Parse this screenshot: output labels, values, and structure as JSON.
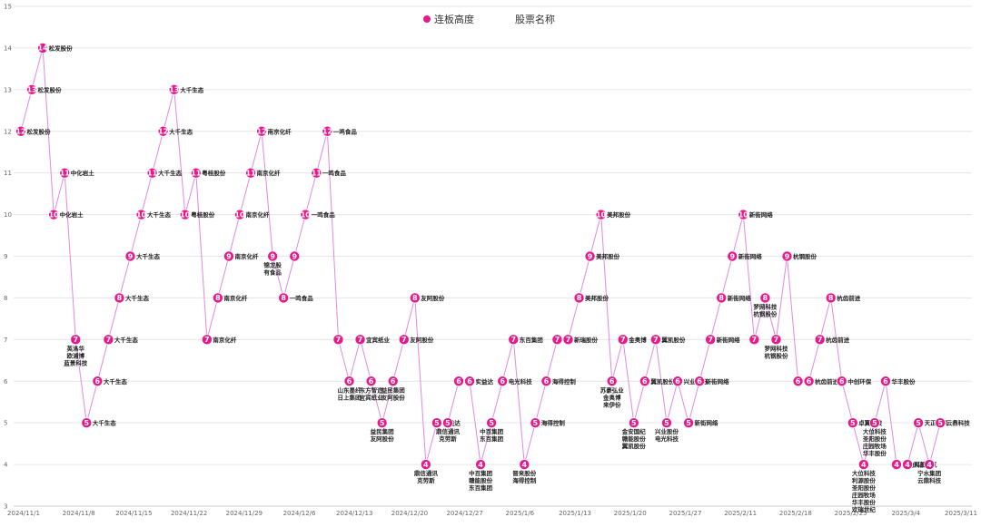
{
  "chart_data": {
    "type": "line",
    "y_ticks": [
      3,
      4,
      5,
      6,
      7,
      8,
      9,
      10,
      11,
      12,
      13,
      14,
      15
    ],
    "ylim": [
      3,
      15
    ],
    "x_ticks": [
      "2024/11/1",
      "2024/11/8",
      "2024/11/15",
      "2024/11/22",
      "2024/11/29",
      "2024/12/6",
      "2024/12/13",
      "2024/12/20",
      "2024/12/27",
      "2025/1/6",
      "2025/1/13",
      "2025/1/20",
      "2025/1/27",
      "2025/2/11",
      "2025/2/18",
      "2025/2/25",
      "2025/3/4",
      "2025/3/11"
    ],
    "legend": [
      {
        "label": "连板高度",
        "color": "#e8198b"
      },
      {
        "label": "股票名称",
        "color": "#ffffff"
      }
    ],
    "series_color": "#e8198b",
    "line_color": "#e089e0",
    "points": [
      {
        "x": 0,
        "y": 12,
        "label": "松发股份"
      },
      {
        "x": 1,
        "y": 13,
        "label": "松发股份"
      },
      {
        "x": 2,
        "y": 14,
        "label": "松发股份"
      },
      {
        "x": 3,
        "y": 10,
        "label": "中化岩土"
      },
      {
        "x": 4,
        "y": 11,
        "label": "中化岩土"
      },
      {
        "x": 5,
        "y": 7,
        "label": "英洛华\n欧浦博\n蓝景科技"
      },
      {
        "x": 6,
        "y": 5,
        "label": "大千生态"
      },
      {
        "x": 7,
        "y": 6,
        "label": "大千生态"
      },
      {
        "x": 8,
        "y": 7,
        "label": "大千生态"
      },
      {
        "x": 9,
        "y": 8,
        "label": "大千生态"
      },
      {
        "x": 10,
        "y": 9,
        "label": "大千生态"
      },
      {
        "x": 11,
        "y": 10,
        "label": "大千生态"
      },
      {
        "x": 12,
        "y": 11,
        "label": "大千生态"
      },
      {
        "x": 13,
        "y": 12,
        "label": "大千生态"
      },
      {
        "x": 14,
        "y": 13,
        "label": "大千生态"
      },
      {
        "x": 15,
        "y": 10,
        "label": "粤桂股份"
      },
      {
        "x": 16,
        "y": 11,
        "label": "粤桂股份"
      },
      {
        "x": 17,
        "y": 7,
        "label": "南京化纤"
      },
      {
        "x": 18,
        "y": 8,
        "label": "南京化纤"
      },
      {
        "x": 19,
        "y": 9,
        "label": "南京化纤"
      },
      {
        "x": 20,
        "y": 10,
        "label": "南京化纤"
      },
      {
        "x": 21,
        "y": 11,
        "label": "南京化纤"
      },
      {
        "x": 22,
        "y": 12,
        "label": "南京化纤"
      },
      {
        "x": 23,
        "y": 9,
        "label": "锦龙股\n有食品"
      },
      {
        "x": 24,
        "y": 8,
        "label": "一鸣食品"
      },
      {
        "x": 25,
        "y": 9,
        "label": ""
      },
      {
        "x": 26,
        "y": 10,
        "label": "一鸣食品"
      },
      {
        "x": 27,
        "y": 11,
        "label": "一鸣食品"
      },
      {
        "x": 28,
        "y": 12,
        "label": "一鸣食品"
      },
      {
        "x": 29,
        "y": 7,
        "label": ""
      },
      {
        "x": 30,
        "y": 6,
        "label": "山东墨纤\n日上集团"
      },
      {
        "x": 31,
        "y": 7,
        "label": "宜宾纸业"
      },
      {
        "x": 32,
        "y": 6,
        "label": "东方智造\n宜宾纸业"
      },
      {
        "x": 33,
        "y": 5,
        "label": "益民集团\n友阿股份"
      },
      {
        "x": 34,
        "y": 6,
        "label": "益民集团\n友阿股份"
      },
      {
        "x": 35,
        "y": 7,
        "label": "友阿股份"
      },
      {
        "x": 36,
        "y": 8,
        "label": "友阿股份"
      },
      {
        "x": 37,
        "y": 4,
        "label": "鼎信通讯\n克劳斯"
      },
      {
        "x": 38,
        "y": 5,
        "label": "实益达"
      },
      {
        "x": 39,
        "y": 5,
        "label": "鼎信通讯\n克劳斯"
      },
      {
        "x": 40,
        "y": 6,
        "label": ""
      },
      {
        "x": 41,
        "y": 6,
        "label": "实益达"
      },
      {
        "x": 42,
        "y": 4,
        "label": "中百集团\n赣能股份\n东百集团"
      },
      {
        "x": 43,
        "y": 5,
        "label": "中百集团\n东百集团"
      },
      {
        "x": 44,
        "y": 6,
        "label": "电光科技"
      },
      {
        "x": 45,
        "y": 7,
        "label": "东百集团"
      },
      {
        "x": 46,
        "y": 4,
        "label": "晋来股份\n海得控制"
      },
      {
        "x": 47,
        "y": 5,
        "label": "海得控制"
      },
      {
        "x": 48,
        "y": 6,
        "label": "海得控制"
      },
      {
        "x": 49,
        "y": 7,
        "label": ""
      },
      {
        "x": 50,
        "y": 7,
        "label": "新瑞股份"
      },
      {
        "x": 51,
        "y": 8,
        "label": "美邦股份"
      },
      {
        "x": 52,
        "y": 9,
        "label": "美邦股份"
      },
      {
        "x": 53,
        "y": 10,
        "label": "美邦股份"
      },
      {
        "x": 54,
        "y": 6,
        "label": "苏豪弘业\n金奥博\n来伊份"
      },
      {
        "x": 55,
        "y": 7,
        "label": "金奥博"
      },
      {
        "x": 56,
        "y": 5,
        "label": "金安国纪\n赣能股份\n翼凯股份"
      },
      {
        "x": 57,
        "y": 6,
        "label": "翼凯股份"
      },
      {
        "x": 58,
        "y": 7,
        "label": "翼凯股份"
      },
      {
        "x": 59,
        "y": 5,
        "label": "兴业股份\n电光科技"
      },
      {
        "x": 60,
        "y": 6,
        "label": "兴业股份"
      },
      {
        "x": 61,
        "y": 5,
        "label": "新街网络"
      },
      {
        "x": 62,
        "y": 6,
        "label": "新街网络"
      },
      {
        "x": 63,
        "y": 7,
        "label": "新街网络"
      },
      {
        "x": 64,
        "y": 8,
        "label": "新街网络"
      },
      {
        "x": 65,
        "y": 9,
        "label": "新街网络"
      },
      {
        "x": 66,
        "y": 10,
        "label": "新街网络"
      },
      {
        "x": 67,
        "y": 7,
        "label": ""
      },
      {
        "x": 68,
        "y": 8,
        "label": "梦网科技\n杭钢股份"
      },
      {
        "x": 69,
        "y": 7,
        "label": "梦网科技\n杭钢股份"
      },
      {
        "x": 70,
        "y": 9,
        "label": "杭钢股份"
      },
      {
        "x": 71,
        "y": 6,
        "label": ""
      },
      {
        "x": 72,
        "y": 6,
        "label": "杭齿前进"
      },
      {
        "x": 73,
        "y": 7,
        "label": "杭齿前进"
      },
      {
        "x": 74,
        "y": 8,
        "label": "杭齿前进"
      },
      {
        "x": 75,
        "y": 6,
        "label": "中创环保"
      },
      {
        "x": 76,
        "y": 5,
        "label": "卓翼科技"
      },
      {
        "x": 77,
        "y": 4,
        "label": "大位科技\n利源股份\n圣阳股份\n庄园牧场\n华丰股份\n欢瑞世纪"
      },
      {
        "x": 78,
        "y": 5,
        "label": "大位科技\n圣阳股份\n庄园牧场\n华丰股份"
      },
      {
        "x": 79,
        "y": 6,
        "label": "华丰股份"
      },
      {
        "x": 80,
        "y": 4,
        "label": "恒为科技"
      },
      {
        "x": 81,
        "y": 4,
        "label": "天正电气"
      },
      {
        "x": 82,
        "y": 5,
        "label": "天正电气"
      },
      {
        "x": 83,
        "y": 4,
        "label": "宁水集团\n云鼎科技"
      },
      {
        "x": 84,
        "y": 5,
        "label": "云鼎科技"
      }
    ]
  }
}
